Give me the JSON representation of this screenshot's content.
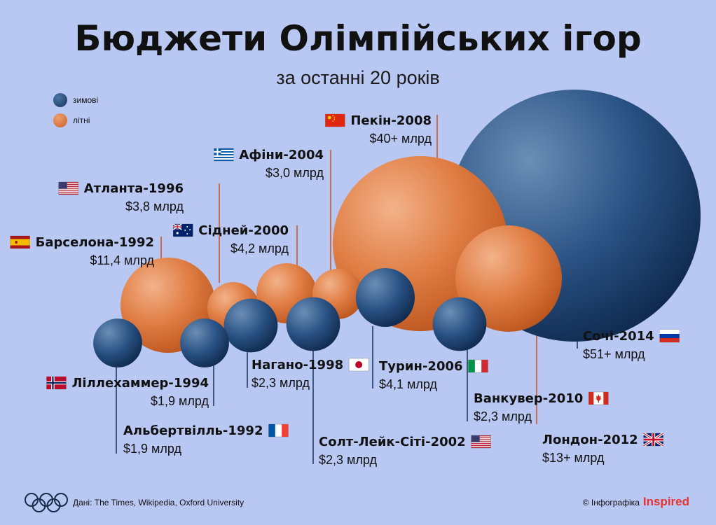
{
  "header": {
    "title": "Бюджети Олімпійських ігор",
    "subtitle": "за останні 20 років"
  },
  "legend": {
    "winter_label": "зимові",
    "summer_label": "літні"
  },
  "colors": {
    "winter": "#1e4473",
    "summer": "#d97236",
    "leader_line": "#c9572a",
    "brand": "#e8322c"
  },
  "footer": {
    "source_label": "Дані:",
    "source_text": "The Times, Wikipedia, Oxford University",
    "credit_text": "© Інфографіка",
    "brand": "Inspired"
  },
  "chart_data": {
    "type": "bubble",
    "series": [
      {
        "name": "зимові",
        "points": [
          {
            "city": "Ліллехаммер-1994",
            "value_label": "$1,9 млрд",
            "value": 1.9,
            "flag": "norway-flag"
          },
          {
            "city": "Альбертвілль-1992",
            "value_label": "$1,9 млрд",
            "value": 1.9,
            "flag": "france-flag"
          },
          {
            "city": "Нагано-1998",
            "value_label": "$2,3 млрд",
            "value": 2.3,
            "flag": "japan-flag"
          },
          {
            "city": "Солт-Лейк-Сіті-2002",
            "value_label": "$2,3 млрд",
            "value": 2.3,
            "flag": "usa-flag"
          },
          {
            "city": "Турин-2006",
            "value_label": "$4,1 млрд",
            "value": 4.1,
            "flag": "italy-flag"
          },
          {
            "city": "Ванкувер-2010",
            "value_label": "$2,3 млрд",
            "value": 2.3,
            "flag": "canada-flag"
          },
          {
            "city": "Сочі-2014",
            "value_label": "$51+ млрд",
            "value": 51,
            "flag": "russia-flag"
          }
        ]
      },
      {
        "name": "літні",
        "points": [
          {
            "city": "Барселона-1992",
            "value_label": "$11,4 млрд",
            "value": 11.4,
            "flag": "spain-flag"
          },
          {
            "city": "Атланта-1996",
            "value_label": "$3,8 млрд",
            "value": 3.8,
            "flag": "usa-flag"
          },
          {
            "city": "Сідней-2000",
            "value_label": "$4,2 млрд",
            "value": 4.2,
            "flag": "australia-flag"
          },
          {
            "city": "Афіни-2004",
            "value_label": "$3,0 млрд",
            "value": 3.0,
            "flag": "greece-flag"
          },
          {
            "city": "Пекін-2008",
            "value_label": "$40+ млрд",
            "value": 40,
            "flag": "china-flag"
          },
          {
            "city": "Лондон-2012",
            "value_label": "$13+ млрд",
            "value": 13,
            "flag": "uk-flag"
          }
        ]
      }
    ]
  }
}
